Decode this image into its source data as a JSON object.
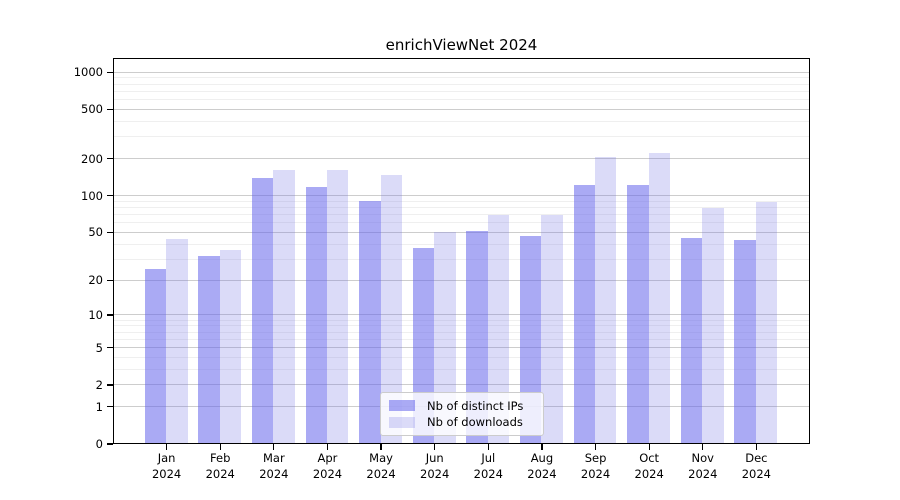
{
  "chart_data": {
    "type": "bar",
    "title": "enrichViewNet 2024",
    "year": "2024",
    "categories": [
      "Jan",
      "Feb",
      "Mar",
      "Apr",
      "May",
      "Jun",
      "Jul",
      "Aug",
      "Sep",
      "Oct",
      "Nov",
      "Dec"
    ],
    "series": [
      {
        "name": "Nb of distinct IPs",
        "values": [
          25,
          32,
          138,
          118,
          91,
          37,
          51,
          47,
          122,
          123,
          45,
          43
        ],
        "color": "rgba(101,101,235,0.55)"
      },
      {
        "name": "Nb of downloads",
        "values": [
          44,
          36,
          162,
          163,
          147,
          50,
          70,
          70,
          207,
          221,
          80,
          89
        ],
        "color": "rgba(111,111,227,0.25)"
      }
    ],
    "y_scale": "log1p",
    "y_ticks": [
      0,
      1,
      2,
      5,
      10,
      20,
      50,
      100,
      200,
      500,
      1000
    ],
    "y_minor_gridlines": [
      3,
      4,
      6,
      7,
      8,
      9,
      30,
      40,
      60,
      70,
      80,
      90,
      300,
      400,
      600,
      700,
      800,
      900
    ],
    "ylim": [
      0,
      1300
    ],
    "grid": true,
    "legend_position": "lower-center",
    "colors": {
      "bar_dark_composite": "#a9a9f6",
      "bar_light_composite": "#dbdbf8",
      "grid_major": "#cdcdcd",
      "grid_minor": "#efefef",
      "spine": "#000000"
    }
  }
}
